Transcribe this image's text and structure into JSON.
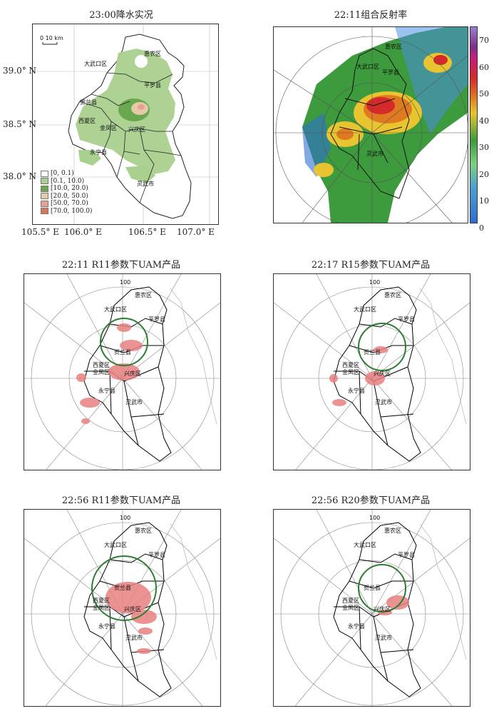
{
  "panels": {
    "p1": {
      "title": "23:00降水实况",
      "scale_bar": "0  10 km",
      "lat_labels": [
        "39.0° N",
        "38.5° N",
        "38.0° N"
      ],
      "lon_labels": [
        "105.5° E",
        "106.0° E",
        "106.5° E",
        "107.0° E"
      ],
      "legend": [
        {
          "label": "[0, 0.1)",
          "color": "#ffffff"
        },
        {
          "label": "[0.1, 10.0)",
          "color": "#a9d08e"
        },
        {
          "label": "[10.0, 20.0)",
          "color": "#6aa84f"
        },
        {
          "label": "[20.0, 50.0)",
          "color": "#e6c9a8"
        },
        {
          "label": "[50.0, 70.0)",
          "color": "#e8a090"
        },
        {
          "label": "[70.0, 100.0)",
          "color": "#d9775a"
        }
      ]
    },
    "p2": {
      "title": "22:11组合反射率",
      "colorbar_ticks": [
        "70",
        "60",
        "50",
        "40",
        "30",
        "20",
        "10",
        "0"
      ]
    },
    "p3": {
      "title": "22:11 R11参数下UAM产品"
    },
    "p4": {
      "title": "22:17 R15参数下UAM产品"
    },
    "p5": {
      "title": "22:56 R11参数下UAM产品"
    },
    "p6": {
      "title": "22:56 R20参数下UAM产品"
    }
  },
  "ring_label": "100",
  "place_names": {
    "huinong": "惠农区",
    "dawukou": "大武口区",
    "pingluo": "平罗县",
    "helan": "贺兰县",
    "xixia": "西夏区",
    "jinfeng": "金凤区",
    "xingqing": "兴庆区",
    "yongning": "永宁县",
    "lingwu": "灵武市"
  },
  "colors": {
    "uam_fill": "#e88080",
    "circle": "#2e7d32",
    "border": "#000000",
    "grid": "#888888"
  }
}
